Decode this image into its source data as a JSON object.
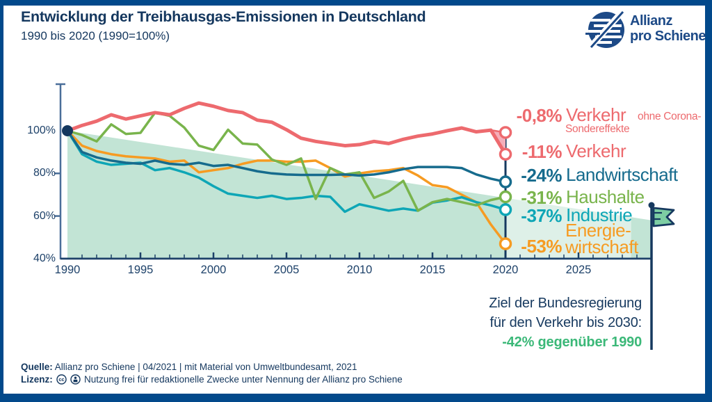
{
  "header": {
    "title": "Entwicklung der Treibhausgas-Emissionen in Deutschland",
    "subtitle": "1990 bis 2020 (1990=100%)"
  },
  "logo": {
    "line1": "Allianz",
    "line2": "pro Schiene"
  },
  "series_labels": [
    {
      "value": "-0,8%",
      "name": "Verkehr",
      "suffix": "ohne Corona-",
      "suffix2": "Sondereffekte",
      "color": "#ed6a6e"
    },
    {
      "value": "-11%",
      "name": "Verkehr",
      "color": "#ed6a6e"
    },
    {
      "value": "-24%",
      "name": "Landwirtschaft",
      "color": "#166b8d"
    },
    {
      "value": "-31%",
      "name": "Haushalte",
      "color": "#79b44c"
    },
    {
      "value": "-37%",
      "name": "Industrie",
      "color": "#0ea6b6"
    },
    {
      "value": "-53%",
      "name_line1": "Energie-",
      "name_line2": "wirtschaft",
      "color": "#f69b22"
    }
  ],
  "annotation": {
    "line1": "Ziel der Bundesregierung",
    "line2": "für den Verkehr bis 2030:",
    "line3": "-42% gegenüber 1990"
  },
  "footer": {
    "source_label": "Quelle:",
    "source_text": "Allianz pro Schiene | 04/2021 | mit Material von Umweltbundesamt, 2021",
    "license_label": "Lizenz:",
    "license_text": "Nutzung frei für redaktionelle Zwecke unter Nennung der Allianz pro Schiene"
  },
  "chart_data": {
    "type": "line",
    "title": "Entwicklung der Treibhausgas-Emissionen in Deutschland",
    "subtitle": "1990 bis 2020 (1990=100%)",
    "x_start": 1990,
    "x_end": 2020,
    "xlim": [
      1990,
      2030
    ],
    "ylim": [
      40,
      115
    ],
    "xticks": [
      1990,
      1995,
      2000,
      2005,
      2010,
      2015,
      2020,
      2025
    ],
    "yticks": [
      100,
      80,
      60,
      40
    ],
    "grid": false,
    "legend_position": "right",
    "axis_color_y": "#4a6e99",
    "axis_color_x": "#1d4169",
    "line_2020_color": "#16395f",
    "series": [
      {
        "id": "energiewirtschaft",
        "name": "Energiewirtschaft",
        "change": "-53%",
        "color": "#f69b22",
        "width": 3.5,
        "values": [
          100,
          93,
          90.5,
          89,
          88,
          87.5,
          87,
          85.5,
          86,
          80.5,
          81.5,
          82.5,
          84.5,
          86,
          86,
          85.5,
          85.5,
          86,
          82.5,
          78.5,
          80,
          81,
          81.5,
          82.5,
          79,
          74.5,
          73.5,
          70,
          66.5,
          56,
          47
        ]
      },
      {
        "id": "industrie",
        "name": "Industrie",
        "change": "-37%",
        "color": "#0ea6b6",
        "width": 3.5,
        "values": [
          100,
          89,
          85.5,
          84,
          84.5,
          85,
          81.5,
          82.5,
          80.5,
          78,
          74,
          70.5,
          69.5,
          68.5,
          69.5,
          68,
          68.5,
          69.5,
          69,
          62,
          65.5,
          64,
          62.5,
          63.5,
          62.5,
          66.3,
          67.3,
          68.8,
          66.5,
          65,
          63
        ]
      },
      {
        "id": "haushalte",
        "name": "Haushalte",
        "change": "-31%",
        "color": "#79b44c",
        "width": 3.5,
        "values": [
          100,
          98,
          95,
          103,
          98.5,
          99,
          108.5,
          107,
          101.5,
          93,
          91,
          100.5,
          94,
          93.5,
          86.5,
          84,
          87,
          68,
          82.5,
          79.5,
          80.5,
          68.5,
          71.5,
          76.5,
          62.5,
          66.5,
          68,
          66.5,
          65,
          67.5,
          69
        ]
      },
      {
        "id": "landwirtschaft",
        "name": "Landwirtschaft",
        "change": "-24%",
        "color": "#166b8d",
        "width": 3.5,
        "values": [
          100,
          90,
          87.5,
          86,
          85,
          84.5,
          86,
          84.5,
          84,
          85,
          83.5,
          84,
          82.5,
          81,
          80,
          79.5,
          79.3,
          79.3,
          79.3,
          79.5,
          79,
          79.5,
          80.5,
          82,
          83,
          83,
          83,
          82.5,
          79.5,
          77.5,
          76
        ]
      },
      {
        "id": "verkehr-ohne-corona",
        "name": "Verkehr ohne Corona-Sondereffekte",
        "change": "-0,8%",
        "color": "#ed6a6e",
        "width": 2.5,
        "values": [
          100,
          102.5,
          104.5,
          107.5,
          105.5,
          107,
          108.5,
          107.5,
          110.5,
          113,
          111.5,
          109.5,
          108.5,
          105,
          104,
          100.5,
          96.5,
          95,
          94,
          93,
          93.5,
          95,
          94,
          96,
          97.5,
          98.5,
          100,
          101.3,
          99.5,
          100.3,
          99.2
        ]
      },
      {
        "id": "verkehr",
        "name": "Verkehr",
        "change": "-11%",
        "color": "#ed6a6e",
        "width": 5,
        "values": [
          100,
          102.5,
          104.5,
          107.5,
          105.5,
          107,
          108.5,
          107.5,
          110.5,
          113,
          111.5,
          109.5,
          108.5,
          105,
          104,
          100.5,
          96.5,
          95,
          94,
          93,
          93.5,
          95,
          94,
          96,
          97.5,
          98.5,
          100,
          101.3,
          99.5,
          100.3,
          89
        ]
      }
    ],
    "corona_drop": {
      "year_from": 2019,
      "top_value": 99.2,
      "bottom_value": 89,
      "fill": "#f5aeb9"
    },
    "target_wedge": {
      "start_year": 1990,
      "start_value": 100,
      "end_year": 2030,
      "end_value": 58,
      "split_year": 2020,
      "dark_tail_from": 2028.6,
      "color_main": "#c2e4d5",
      "color_light": "#def0e8"
    },
    "flag": {
      "year": 2030,
      "value": 58,
      "color": "#7dcea3",
      "label": "Ziel der Bundesregierung für den Verkehr bis 2030: -42% gegenüber 1990"
    },
    "start_dot": {
      "year": 1990,
      "value": 100,
      "color": "#14375e"
    }
  }
}
